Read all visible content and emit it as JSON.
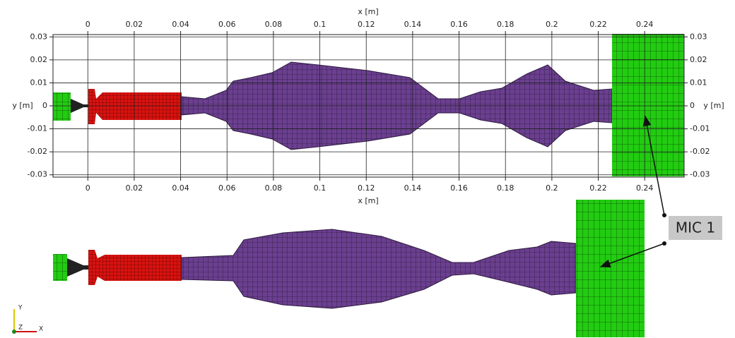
{
  "top_view": {
    "x_label": "x [m]",
    "y_label": "y [m]",
    "xlim": [
      -0.015,
      0.257
    ],
    "ylim": [
      -0.031,
      0.031
    ],
    "xticks": [
      0,
      0.02,
      0.04,
      0.06,
      0.08,
      0.1,
      0.12,
      0.14,
      0.16,
      0.18,
      0.2,
      0.22,
      0.24
    ],
    "yticks": [
      -0.03,
      -0.02,
      -0.01,
      0,
      0.01,
      0.02,
      0.03
    ]
  },
  "annotation": "MIC 1",
  "orientation_axes": {
    "y": "Y",
    "z": "Z",
    "x": "X"
  }
}
